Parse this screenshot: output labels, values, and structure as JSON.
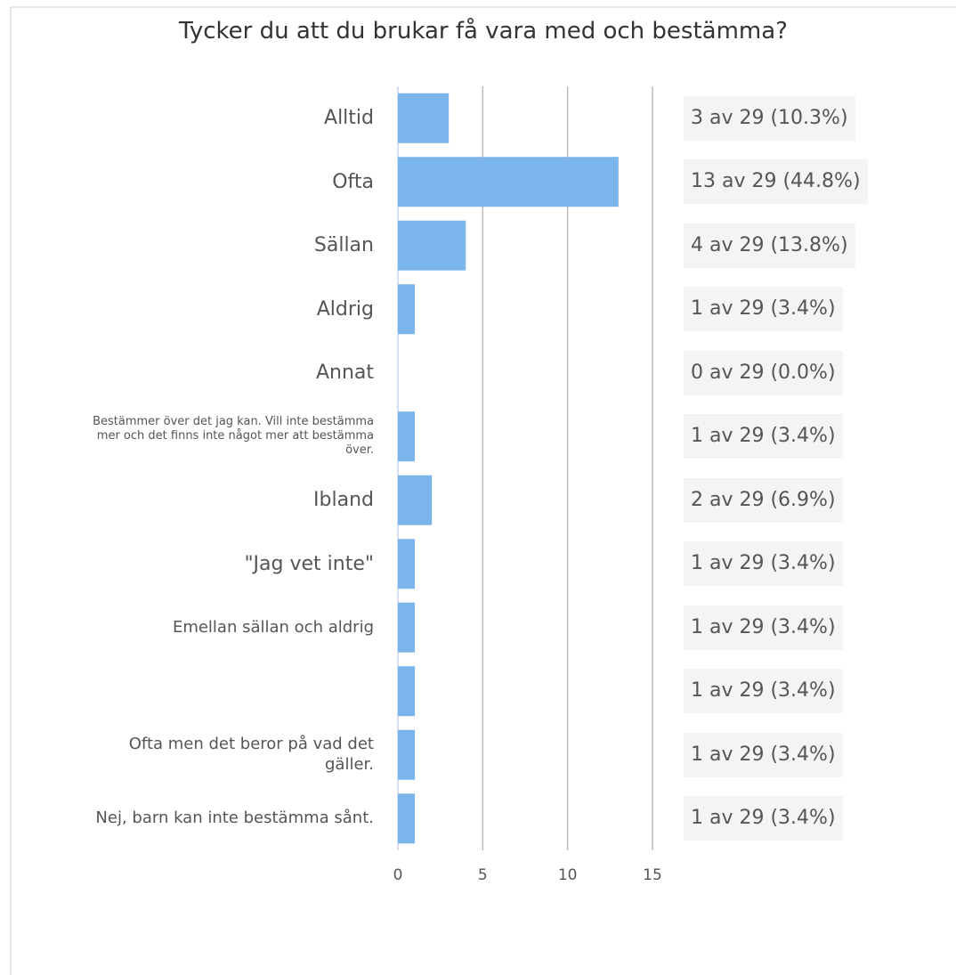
{
  "chart_data": {
    "type": "hbar",
    "title": "Tycker du att du brukar få vara med och bestämma?",
    "categories": [
      "Alltid",
      "Ofta",
      "Sällan",
      "Aldrig",
      "Annat",
      "Bestämmer över det jag kan. Vill inte bestämma mer och det finns inte något mer att bestämma över.",
      "Ibland",
      "\"Jag vet inte\"",
      "Emellan sällan och aldrig",
      null,
      "Ofta men det beror på vad det gäller.",
      "Nej, barn kan inte bestämma sånt."
    ],
    "values": [
      3,
      13,
      4,
      1,
      0,
      1,
      2,
      1,
      1,
      1,
      1,
      1
    ],
    "value_labels": [
      "3 av 29 (10.3%)",
      "13 av 29 (44.8%)",
      "4 av 29 (13.8%)",
      "1 av 29 (3.4%)",
      "0 av 29 (0.0%)",
      "1 av 29 (3.4%)",
      "2 av 29 (6.9%)",
      "1 av 29 (3.4%)",
      "1 av 29 (3.4%)",
      "1 av 29 (3.4%)",
      "1 av 29 (3.4%)",
      "1 av 29 (3.4%)"
    ],
    "color": "#7cb5ec",
    "xlim": [
      0,
      15
    ],
    "xticks": [
      0,
      5,
      10,
      15
    ],
    "grid": true
  }
}
